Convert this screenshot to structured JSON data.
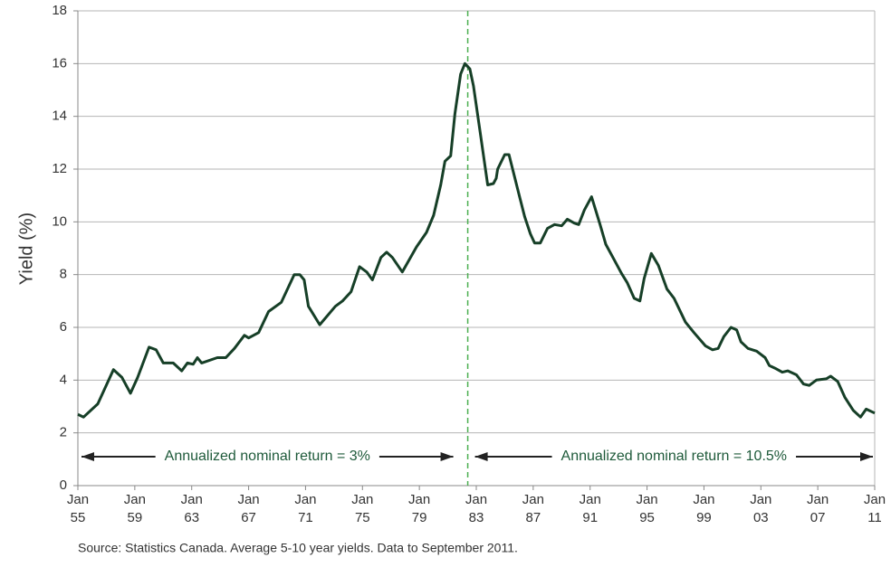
{
  "chart_data": {
    "type": "line",
    "y_label": "Yield (%)",
    "source": "Source: Statistics Canada. Average 5-10 year yields. Data to September 2011.",
    "xlim": [
      1955,
      2011
    ],
    "xticks": [
      {
        "value": 1955,
        "label": "Jan 55"
      },
      {
        "value": 1959,
        "label": "Jan 59"
      },
      {
        "value": 1963,
        "label": "Jan 63"
      },
      {
        "value": 1967,
        "label": "Jan 67"
      },
      {
        "value": 1971,
        "label": "Jan 71"
      },
      {
        "value": 1975,
        "label": "Jan 75"
      },
      {
        "value": 1979,
        "label": "Jan 79"
      },
      {
        "value": 1983,
        "label": "Jan 83"
      },
      {
        "value": 1987,
        "label": "Jan 87"
      },
      {
        "value": 1991,
        "label": "Jan 91"
      },
      {
        "value": 1995,
        "label": "Jan 95"
      },
      {
        "value": 1999,
        "label": "Jan 99"
      },
      {
        "value": 2003,
        "label": "Jan 03"
      },
      {
        "value": 2007,
        "label": "Jan 07"
      },
      {
        "value": 2011,
        "label": "Jan 11"
      }
    ],
    "ylim": [
      0,
      18
    ],
    "yticks": [
      0,
      2,
      4,
      6,
      8,
      10,
      12,
      14,
      16,
      18
    ],
    "grid": true,
    "divider_x": 1982.4,
    "annotations": [
      "Annualized nominal return = 3%",
      "Annualized nominal return = 10.5%"
    ],
    "series": [
      {
        "color": "#163f27",
        "x": [
          1955.0,
          1955.4,
          1956.4,
          1957.5,
          1958.1,
          1958.7,
          1959.2,
          1960.0,
          1960.5,
          1961.0,
          1961.7,
          1962.3,
          1962.7,
          1963.1,
          1963.4,
          1963.7,
          1964.8,
          1965.4,
          1966.0,
          1966.7,
          1967.0,
          1967.7,
          1968.4,
          1969.3,
          1970.2,
          1970.6,
          1970.9,
          1971.2,
          1972.0,
          1973.1,
          1973.6,
          1974.2,
          1974.8,
          1975.3,
          1975.7,
          1976.3,
          1976.7,
          1977.1,
          1977.8,
          1978.8,
          1979.5,
          1980.0,
          1980.5,
          1980.8,
          1981.2,
          1981.5,
          1981.9,
          1982.2,
          1982.55,
          1982.8,
          1983.3,
          1983.8,
          1984.2,
          1984.4,
          1984.5,
          1985.0,
          1985.3,
          1986.0,
          1986.4,
          1986.8,
          1987.1,
          1987.5,
          1988.0,
          1988.5,
          1989.0,
          1989.4,
          1989.9,
          1990.2,
          1990.6,
          1991.1,
          1991.7,
          1992.1,
          1992.6,
          1993.2,
          1993.6,
          1994.1,
          1994.5,
          1994.8,
          1995.3,
          1995.8,
          1996.4,
          1996.9,
          1997.7,
          1998.3,
          1999.1,
          1999.6,
          2000.0,
          2000.4,
          2000.9,
          2001.3,
          2001.6,
          2002.1,
          2002.7,
          2003.3,
          2003.6,
          2004.0,
          2004.5,
          2004.9,
          2005.5,
          2006.0,
          2006.4,
          2006.9,
          2007.6,
          2007.9,
          2008.4,
          2008.9,
          2009.5,
          2010.0,
          2010.4,
          2011.0
        ],
        "values": [
          2.7,
          2.6,
          3.1,
          4.4,
          4.1,
          3.5,
          4.1,
          5.25,
          5.15,
          4.65,
          4.65,
          4.35,
          4.65,
          4.6,
          4.85,
          4.65,
          4.85,
          4.85,
          5.2,
          5.7,
          5.6,
          5.8,
          6.6,
          6.95,
          8.0,
          8.0,
          7.8,
          6.8,
          6.1,
          6.8,
          7.0,
          7.35,
          8.3,
          8.1,
          7.8,
          8.65,
          8.85,
          8.65,
          8.1,
          9.05,
          9.6,
          10.25,
          11.4,
          12.3,
          12.5,
          14.1,
          15.6,
          16.0,
          15.8,
          15.15,
          13.3,
          11.4,
          11.45,
          11.65,
          12.0,
          12.55,
          12.55,
          11.05,
          10.2,
          9.55,
          9.2,
          9.2,
          9.75,
          9.9,
          9.85,
          10.1,
          9.95,
          9.9,
          10.45,
          10.95,
          9.9,
          9.15,
          8.65,
          8.05,
          7.7,
          7.1,
          7.0,
          7.85,
          8.8,
          8.35,
          7.45,
          7.1,
          6.2,
          5.8,
          5.3,
          5.15,
          5.2,
          5.65,
          6.0,
          5.9,
          5.45,
          5.2,
          5.1,
          4.85,
          4.55,
          4.45,
          4.3,
          4.35,
          4.2,
          3.85,
          3.8,
          4.0,
          4.05,
          4.15,
          3.95,
          3.35,
          2.85,
          2.6,
          2.9,
          2.75
        ]
      }
    ]
  }
}
